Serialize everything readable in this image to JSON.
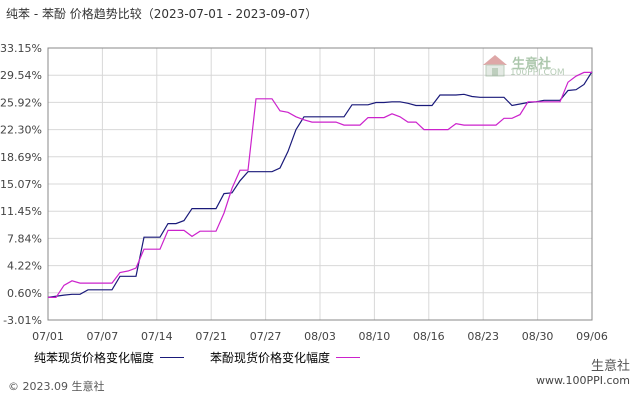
{
  "title": "纯苯 - 苯酚 价格趋势比较（2023-07-01 - 2023-09-07）",
  "footer": {
    "copyright": "© 2023.09 生意社"
  },
  "watermark": {
    "brand": "生意社",
    "site": "www.100PPI.com",
    "logo_brand": "生意社",
    "logo_site": "100PPI.COM"
  },
  "colors": {
    "benzene": "#1a1a7a",
    "phenol": "#cc22cc",
    "grid": "#d8d8d8",
    "axis": "#888888"
  },
  "chart_data": {
    "type": "line",
    "title": "纯苯 - 苯酚 价格趋势比较（2023-07-01 - 2023-09-07）",
    "y_ticks": [
      "33.15%",
      "29.54%",
      "25.92%",
      "22.30%",
      "18.69%",
      "15.07%",
      "11.45%",
      "7.84%",
      "4.22%",
      "0.60%",
      "-3.01%"
    ],
    "ylim": [
      -3.01,
      33.15
    ],
    "x_ticks": [
      "07/01",
      "07/07",
      "07/14",
      "07/21",
      "07/27",
      "08/03",
      "08/10",
      "08/16",
      "08/23",
      "08/30",
      "09/06"
    ],
    "xlim": [
      "07/01",
      "09/07"
    ],
    "grid": true,
    "legend_position": "bottom",
    "series": [
      {
        "name": "纯苯现货价格变化幅度",
        "points": [
          [
            "07/01",
            0.0
          ],
          [
            "07/03",
            0.3
          ],
          [
            "07/04",
            0.4
          ],
          [
            "07/05",
            0.4
          ],
          [
            "07/06",
            1.0
          ],
          [
            "07/07",
            1.0
          ],
          [
            "07/08",
            1.0
          ],
          [
            "07/09",
            1.0
          ],
          [
            "07/10",
            2.8
          ],
          [
            "07/11",
            2.8
          ],
          [
            "07/12",
            2.8
          ],
          [
            "07/13",
            8.0
          ],
          [
            "07/14",
            8.0
          ],
          [
            "07/15",
            8.0
          ],
          [
            "07/16",
            9.8
          ],
          [
            "07/17",
            9.8
          ],
          [
            "07/18",
            10.2
          ],
          [
            "07/19",
            11.8
          ],
          [
            "07/20",
            11.8
          ],
          [
            "07/21",
            11.8
          ],
          [
            "07/22",
            11.8
          ],
          [
            "07/23",
            13.8
          ],
          [
            "07/24",
            13.9
          ],
          [
            "07/25",
            15.5
          ],
          [
            "07/26",
            16.7
          ],
          [
            "07/27",
            16.7
          ],
          [
            "07/28",
            16.7
          ],
          [
            "07/29",
            16.7
          ],
          [
            "07/30",
            17.2
          ],
          [
            "07/31",
            19.4
          ],
          [
            "08/01",
            22.3
          ],
          [
            "08/02",
            24.0
          ],
          [
            "08/03",
            24.0
          ],
          [
            "08/04",
            24.0
          ],
          [
            "08/05",
            24.0
          ],
          [
            "08/06",
            24.0
          ],
          [
            "08/07",
            24.0
          ],
          [
            "08/08",
            25.6
          ],
          [
            "08/09",
            25.6
          ],
          [
            "08/10",
            25.6
          ],
          [
            "08/11",
            25.9
          ],
          [
            "08/12",
            25.9
          ],
          [
            "08/13",
            26.0
          ],
          [
            "08/14",
            26.0
          ],
          [
            "08/15",
            25.8
          ],
          [
            "08/16",
            25.5
          ],
          [
            "08/17",
            25.5
          ],
          [
            "08/18",
            25.5
          ],
          [
            "08/19",
            26.9
          ],
          [
            "08/20",
            26.9
          ],
          [
            "08/21",
            26.9
          ],
          [
            "08/22",
            27.0
          ],
          [
            "08/23",
            26.7
          ],
          [
            "08/24",
            26.6
          ],
          [
            "08/25",
            26.6
          ],
          [
            "08/26",
            26.6
          ],
          [
            "08/27",
            26.6
          ],
          [
            "08/28",
            25.5
          ],
          [
            "08/29",
            25.7
          ],
          [
            "08/30",
            25.9
          ],
          [
            "08/31",
            26.0
          ],
          [
            "09/01",
            26.2
          ],
          [
            "09/02",
            26.2
          ],
          [
            "09/03",
            26.2
          ],
          [
            "09/04",
            27.5
          ],
          [
            "09/05",
            27.6
          ],
          [
            "09/06",
            28.3
          ],
          [
            "09/07",
            30.0
          ]
        ]
      },
      {
        "name": "苯酚现货价格变化幅度",
        "points": [
          [
            "07/01",
            0.0
          ],
          [
            "07/02",
            0.0
          ],
          [
            "07/03",
            1.6
          ],
          [
            "07/04",
            2.2
          ],
          [
            "07/05",
            1.9
          ],
          [
            "07/06",
            1.9
          ],
          [
            "07/07",
            1.9
          ],
          [
            "07/08",
            1.9
          ],
          [
            "07/09",
            1.9
          ],
          [
            "07/10",
            3.3
          ],
          [
            "07/11",
            3.5
          ],
          [
            "07/12",
            3.9
          ],
          [
            "07/13",
            6.4
          ],
          [
            "07/14",
            6.4
          ],
          [
            "07/15",
            6.4
          ],
          [
            "07/16",
            8.9
          ],
          [
            "07/17",
            8.9
          ],
          [
            "07/18",
            8.9
          ],
          [
            "07/19",
            8.1
          ],
          [
            "07/20",
            8.8
          ],
          [
            "07/21",
            8.8
          ],
          [
            "07/22",
            8.8
          ],
          [
            "07/23",
            11.2
          ],
          [
            "07/24",
            14.5
          ],
          [
            "07/25",
            16.9
          ],
          [
            "07/26",
            16.9
          ],
          [
            "07/27",
            26.4
          ],
          [
            "07/28",
            26.4
          ],
          [
            "07/29",
            26.4
          ],
          [
            "07/30",
            24.8
          ],
          [
            "07/31",
            24.6
          ],
          [
            "08/01",
            24.0
          ],
          [
            "08/02",
            23.6
          ],
          [
            "08/03",
            23.3
          ],
          [
            "08/04",
            23.3
          ],
          [
            "08/05",
            23.3
          ],
          [
            "08/06",
            23.3
          ],
          [
            "08/07",
            22.9
          ],
          [
            "08/08",
            22.9
          ],
          [
            "08/09",
            22.9
          ],
          [
            "08/10",
            23.9
          ],
          [
            "08/11",
            23.9
          ],
          [
            "08/12",
            23.9
          ],
          [
            "08/13",
            24.4
          ],
          [
            "08/14",
            24.0
          ],
          [
            "08/15",
            23.3
          ],
          [
            "08/16",
            23.3
          ],
          [
            "08/17",
            22.3
          ],
          [
            "08/18",
            22.3
          ],
          [
            "08/19",
            22.3
          ],
          [
            "08/20",
            22.3
          ],
          [
            "08/21",
            23.1
          ],
          [
            "08/22",
            22.9
          ],
          [
            "08/23",
            22.9
          ],
          [
            "08/24",
            22.9
          ],
          [
            "08/25",
            22.9
          ],
          [
            "08/26",
            22.9
          ],
          [
            "08/27",
            23.8
          ],
          [
            "08/28",
            23.8
          ],
          [
            "08/29",
            24.3
          ],
          [
            "08/30",
            26.0
          ],
          [
            "08/31",
            26.0
          ],
          [
            "09/01",
            26.0
          ],
          [
            "09/02",
            26.0
          ],
          [
            "09/03",
            26.0
          ],
          [
            "09/04",
            28.6
          ],
          [
            "09/05",
            29.4
          ],
          [
            "09/06",
            29.9
          ],
          [
            "09/07",
            29.9
          ]
        ]
      }
    ]
  }
}
